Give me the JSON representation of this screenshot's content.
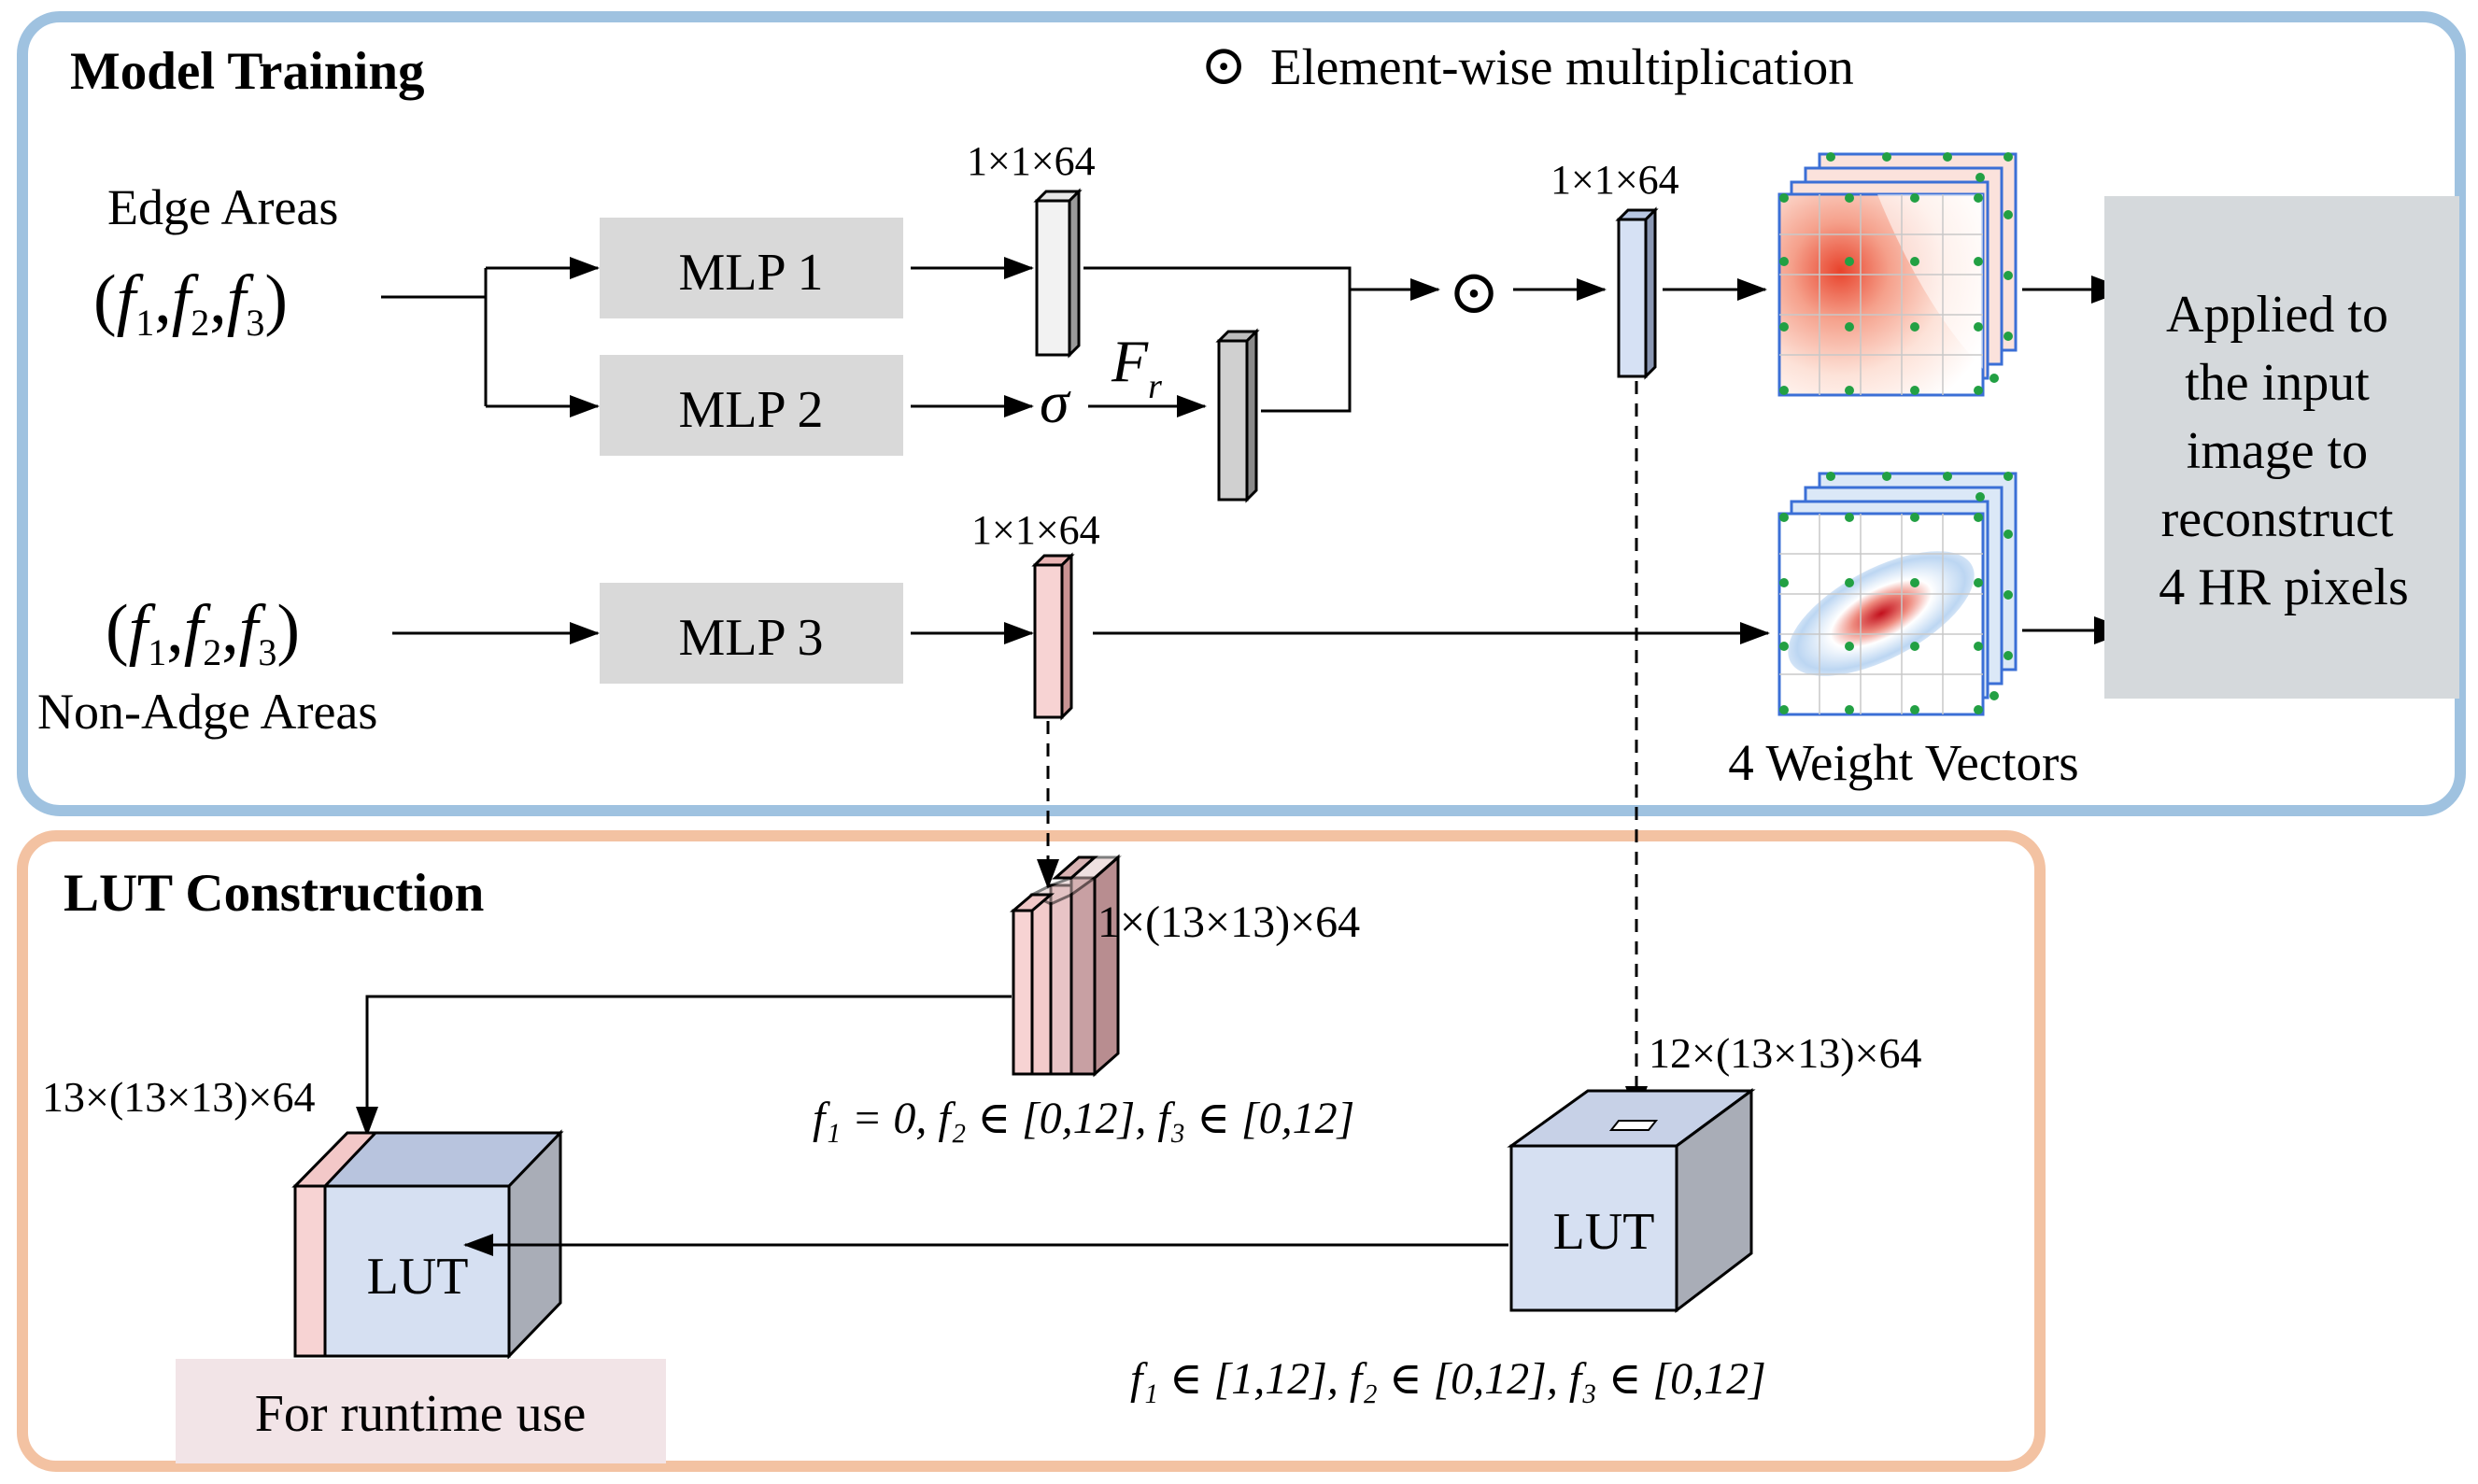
{
  "training": {
    "title": "Model Training",
    "legend_symbol": "⊙",
    "legend_text": "Element-wise multiplication",
    "edge_label": "Edge Areas",
    "non_edge_label": "Non-Adge Areas",
    "input_tuple": [
      "(",
      "f",
      "1",
      ",",
      "f",
      "2",
      ",",
      "f",
      "3",
      ")"
    ],
    "mlp1": "MLP 1",
    "mlp2": "MLP 2",
    "mlp3": "MLP 3",
    "dim_mlp1": "1×1×64",
    "dim_mlp3": "1×1×64",
    "dim_mult": "1×1×64",
    "sigma": "σ",
    "fr_main": "F",
    "fr_sub": "r",
    "odot": "⊙",
    "weights_label": "4 Weight Vectors",
    "applied_lines": [
      "Applied to",
      "the input",
      "image to",
      "reconstruct",
      "4 HR pixels"
    ]
  },
  "lut": {
    "title": "LUT Construction",
    "dim_slice": "1×(13×13)×64",
    "dim_lut_left": "13×(13×13)×64",
    "dim_lut_right": "12×(13×13)×64",
    "range_slice": "f₁ = 0,  f₂ ∈ [0,12],  f₃ ∈ [0,12]",
    "range_right": "f₁ ∈ [1,12],  f₂ ∈ [0,12],  f₃ ∈ [0,12]",
    "lut_left": "LUT",
    "lut_right": "LUT",
    "runtime": "For runtime use"
  },
  "colors": {
    "training_border": "#9fc2e0",
    "lut_border": "#f3c2a2",
    "mlp_fill": "#d9d9d9",
    "applied_fill": "#d5d9dc",
    "blue_vec": "#d6e1f4",
    "gray_vec": "#d0d0d0",
    "white_vec": "#f2f2f2",
    "pink_vec": "#f7d3d3",
    "cube_front": "#d6e0f2",
    "cube_side": "#a9adb7",
    "runtime_fill": "#f2e4e7",
    "dot_green": "#22a043"
  }
}
